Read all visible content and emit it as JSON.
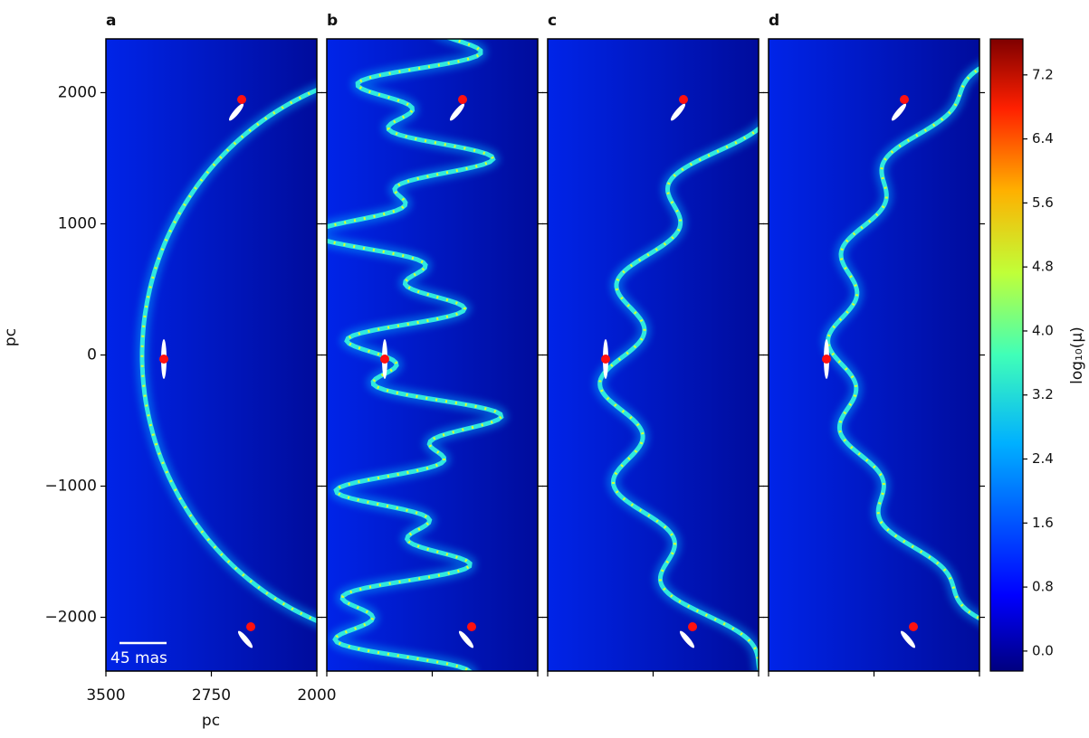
{
  "chart_data": {
    "type": "image-grid",
    "panels": [
      "a",
      "b",
      "c",
      "d"
    ],
    "xlabel": "pc",
    "ylabel": "pc",
    "xlim": [
      3500,
      2000
    ],
    "xticks": [
      3500,
      2750,
      2000
    ],
    "ylim": [
      -2410,
      2410
    ],
    "yticks": [
      {
        "value": 2000,
        "label": "2000"
      },
      {
        "value": 1000,
        "label": "1000"
      },
      0,
      {
        "value": -1000,
        "label": "−1000"
      },
      {
        "value": -2000,
        "label": "−2000"
      }
    ],
    "scale_bar": "45 mas",
    "colorbar": {
      "label": "log₁₀(μ)",
      "colormap": "jet",
      "lim": [
        -0.25,
        7.65
      ],
      "ticks": [
        {
          "value": 0,
          "label": "0.0"
        },
        {
          "value": 0.8,
          "label": "0.8"
        },
        {
          "value": 1.6,
          "label": "1.6"
        },
        {
          "value": 2.4,
          "label": "2.4"
        },
        {
          "value": 3.2,
          "label": "3.2"
        },
        {
          "value": 4,
          "label": "4.0"
        },
        {
          "value": 4.8,
          "label": "4.8"
        },
        {
          "value": 5.6,
          "label": "5.6"
        },
        {
          "value": 6.4,
          "label": "6.4"
        },
        {
          "value": 7.2,
          "label": "7.2"
        }
      ]
    }
  }
}
